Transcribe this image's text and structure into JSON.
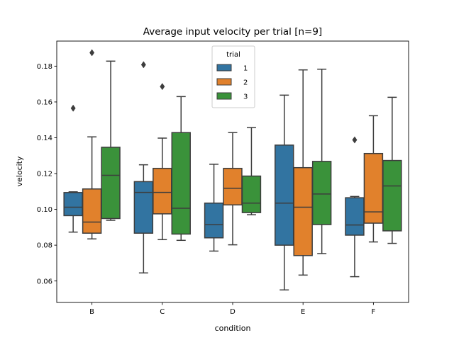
{
  "chart_data": {
    "type": "box",
    "title": "Average input velocity per trial [n=9]",
    "xlabel": "condition",
    "ylabel": "velocity",
    "categories": [
      "B",
      "C",
      "D",
      "E",
      "F"
    ],
    "ylim": [
      0.048,
      0.194
    ],
    "yticks": [
      0.06,
      0.08,
      0.1,
      0.12,
      0.14,
      0.16,
      0.18
    ],
    "ytick_labels": [
      "0.06",
      "0.08",
      "0.10",
      "0.12",
      "0.14",
      "0.16",
      "0.18"
    ],
    "legend": {
      "title": "trial",
      "placement": "upper center"
    },
    "grid": false,
    "series": [
      {
        "name": "1",
        "color": "#3274a1",
        "boxes": [
          {
            "category": "B",
            "whislo": 0.0873,
            "q1": 0.0965,
            "med": 0.1012,
            "q3": 0.1094,
            "whishi": 0.1098,
            "fliers": [
              0.1565
            ]
          },
          {
            "category": "C",
            "whislo": 0.0645,
            "q1": 0.0867,
            "med": 0.1095,
            "q3": 0.1155,
            "whishi": 0.1249,
            "fliers": [
              0.1808
            ]
          },
          {
            "category": "D",
            "whislo": 0.0767,
            "q1": 0.0841,
            "med": 0.0914,
            "q3": 0.1035,
            "whishi": 0.1252,
            "fliers": []
          },
          {
            "category": "E",
            "whislo": 0.055,
            "q1": 0.08,
            "med": 0.1035,
            "q3": 0.1359,
            "whishi": 0.1638,
            "fliers": []
          },
          {
            "category": "F",
            "whislo": 0.0624,
            "q1": 0.0856,
            "med": 0.0913,
            "q3": 0.1065,
            "whishi": 0.1072,
            "fliers": [
              0.1388
            ]
          }
        ]
      },
      {
        "name": "2",
        "color": "#e1812c",
        "boxes": [
          {
            "category": "B",
            "whislo": 0.0835,
            "q1": 0.0867,
            "med": 0.0929,
            "q3": 0.1114,
            "whishi": 0.1405,
            "fliers": [
              0.1875
            ]
          },
          {
            "category": "C",
            "whislo": 0.0831,
            "q1": 0.0975,
            "med": 0.1095,
            "q3": 0.1229,
            "whishi": 0.1398,
            "fliers": [
              0.1686
            ]
          },
          {
            "category": "D",
            "whislo": 0.0802,
            "q1": 0.1025,
            "med": 0.1118,
            "q3": 0.1229,
            "whishi": 0.1429,
            "fliers": []
          },
          {
            "category": "E",
            "whislo": 0.0633,
            "q1": 0.0742,
            "med": 0.1012,
            "q3": 0.1233,
            "whishi": 0.1779,
            "fliers": []
          },
          {
            "category": "F",
            "whislo": 0.0818,
            "q1": 0.0923,
            "med": 0.0986,
            "q3": 0.1312,
            "whishi": 0.1523,
            "fliers": []
          }
        ]
      },
      {
        "name": "3",
        "color": "#3a923a",
        "boxes": [
          {
            "category": "B",
            "whislo": 0.0939,
            "q1": 0.0949,
            "med": 0.119,
            "q3": 0.1347,
            "whishi": 0.1828,
            "fliers": []
          },
          {
            "category": "C",
            "whislo": 0.0827,
            "q1": 0.0862,
            "med": 0.1006,
            "q3": 0.1429,
            "whishi": 0.163,
            "fliers": []
          },
          {
            "category": "D",
            "whislo": 0.097,
            "q1": 0.0982,
            "med": 0.1035,
            "q3": 0.1186,
            "whishi": 0.1457,
            "fliers": []
          },
          {
            "category": "E",
            "whislo": 0.0753,
            "q1": 0.0915,
            "med": 0.1086,
            "q3": 0.1268,
            "whishi": 0.1783,
            "fliers": []
          },
          {
            "category": "F",
            "whislo": 0.081,
            "q1": 0.088,
            "med": 0.1131,
            "q3": 0.1273,
            "whishi": 0.1626,
            "fliers": []
          }
        ]
      }
    ]
  }
}
